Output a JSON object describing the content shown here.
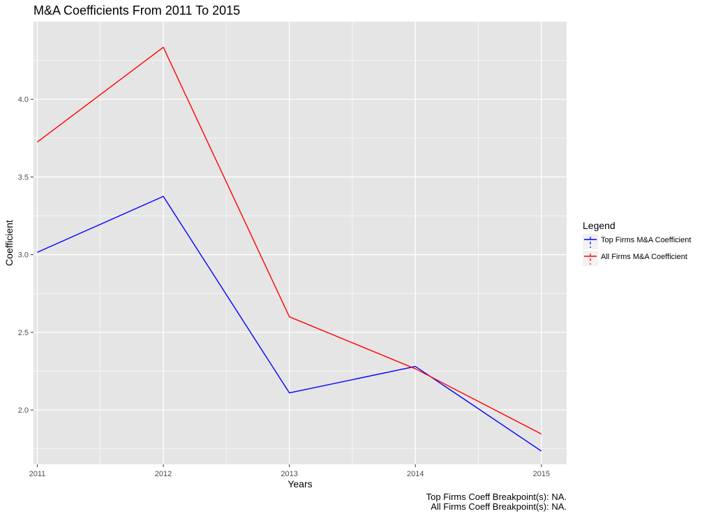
{
  "chart_data": {
    "type": "line",
    "title": "M&A Coefficients From 2011 To 2015",
    "xlabel": "Years",
    "ylabel": "Coefficient",
    "categories": [
      "2011",
      "2012",
      "2013",
      "2014",
      "2015"
    ],
    "x": [
      2011,
      2012,
      2013,
      2014,
      2015
    ],
    "xlim": [
      2010.97,
      2015.2
    ],
    "ylim": [
      1.65,
      4.5
    ],
    "y_ticks": [
      "2.0",
      "2.5",
      "3.0",
      "3.5",
      "4.0"
    ],
    "y_tick_values": [
      2.0,
      2.5,
      3.0,
      3.5,
      4.0
    ],
    "grid": true,
    "legend_position": "right",
    "legend_title": "Legend",
    "series": [
      {
        "name": "Top Firms M&A Coefficient",
        "color": "#0000ff",
        "values": [
          3.015,
          3.375,
          2.11,
          2.28,
          1.735
        ]
      },
      {
        "name": "All Firms M&A Coefficient",
        "color": "#ff0000",
        "values": [
          3.725,
          4.335,
          2.6,
          2.265,
          1.845
        ]
      }
    ],
    "captions": [
      "Top Firms Coeff Breakpoint(s): NA.",
      "All Firms Coeff Breakpoint(s): NA."
    ],
    "panel_background": "#e5e5e5",
    "gridline_color": "#ffffff"
  }
}
